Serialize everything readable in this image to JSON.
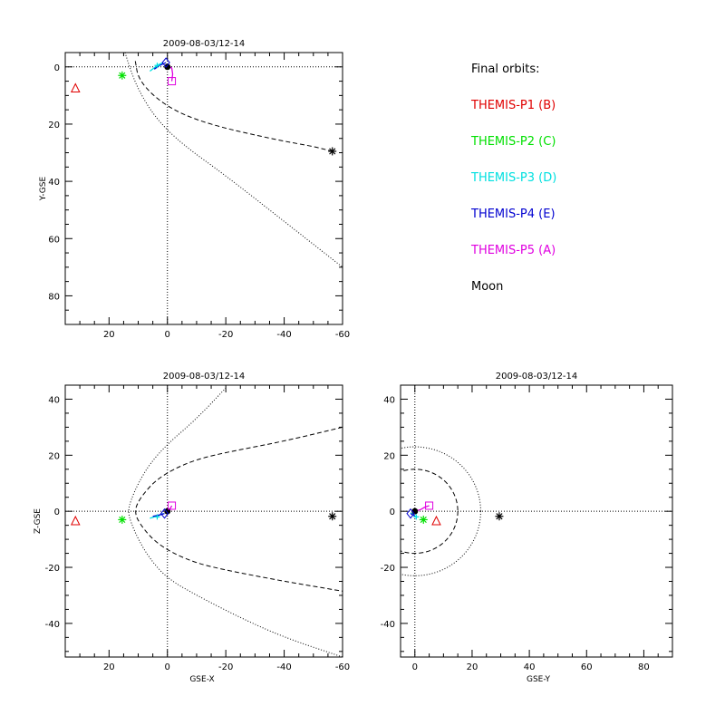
{
  "legend": {
    "title": "Final orbits:",
    "items": [
      {
        "label": "THEMIS-P1 (B)",
        "color": "#e00000"
      },
      {
        "label": "THEMIS-P2 (C)",
        "color": "#00e000"
      },
      {
        "label": "THEMIS-P3 (D)",
        "color": "#00e0e0"
      },
      {
        "label": "THEMIS-P4 (E)",
        "color": "#0000d0"
      },
      {
        "label": "THEMIS-P5 (A)",
        "color": "#e000e0"
      },
      {
        "label": "Moon",
        "color": "#000000"
      }
    ]
  },
  "chart_data": [
    {
      "type": "scatter",
      "title": "2009-08-03/12-14",
      "xlabel": "",
      "ylabel": "Y-GSE",
      "xlim": [
        35,
        -60
      ],
      "ylim": [
        -5,
        90
      ],
      "xticks": [
        20,
        0,
        -20,
        -40,
        -60
      ],
      "yticks": [
        0,
        20,
        40,
        60,
        80
      ],
      "positions": [
        {
          "name": "THEMIS-P1 (B)",
          "x": 31.5,
          "y": 7.5,
          "marker": "triangle",
          "color": "#e00000"
        },
        {
          "name": "THEMIS-P2 (C)",
          "x": 15.5,
          "y": 3,
          "marker": "asterisk",
          "color": "#00e000"
        },
        {
          "name": "THEMIS-P3 (D)",
          "x": 3.5,
          "y": -0.5,
          "marker": "plus",
          "color": "#00e0e0"
        },
        {
          "name": "THEMIS-P4 (E)",
          "x": 0.5,
          "y": -1.5,
          "marker": "diamond",
          "color": "#0000d0"
        },
        {
          "name": "THEMIS-P5 (A)",
          "x": -1.5,
          "y": 5,
          "marker": "square",
          "color": "#e000e0"
        },
        {
          "name": "Moon",
          "x": -56.5,
          "y": 29.5,
          "marker": "asterisk",
          "color": "#000000"
        }
      ],
      "orbit_tracks": [
        {
          "name": "THEMIS-P3 (D)",
          "color": "#00e0e0",
          "x": [
            6,
            4.5,
            3,
            1.5
          ],
          "y": [
            1.5,
            0.3,
            -0.8,
            -1.5
          ]
        },
        {
          "name": "THEMIS-P4 (E)",
          "color": "#0000d0",
          "x": [
            4.5,
            3,
            1.8,
            0.5
          ],
          "y": [
            0.8,
            -0.3,
            -0.9,
            -1.5
          ]
        },
        {
          "name": "THEMIS-P5 (A)",
          "color": "#e000e0",
          "x": [
            -1.5,
            -1.8,
            -1.5,
            -0.5,
            0.5
          ],
          "y": [
            5,
            2.5,
            0.5,
            -0.5,
            -0.2
          ]
        }
      ],
      "boundaries": [
        {
          "name": "bow-shock",
          "style": "dotted",
          "x": [
            14.5,
            13,
            10,
            4,
            -5,
            -20,
            -40,
            -60
          ],
          "y": [
            -5,
            0,
            8,
            18,
            27,
            38,
            54,
            70
          ]
        },
        {
          "name": "magnetopause",
          "style": "dashed",
          "x": [
            11,
            10,
            5,
            -2,
            -10,
            -20,
            -30,
            -40,
            -50,
            -56.5
          ],
          "y": [
            -2,
            4,
            10,
            15,
            18.5,
            21.5,
            23.8,
            26,
            27.8,
            29.5
          ]
        }
      ],
      "earth": {
        "x": 0,
        "y": 0
      }
    },
    {
      "type": "scatter",
      "title": "2009-08-03/12-14",
      "xlabel": "GSE-X",
      "ylabel": "Z-GSE",
      "xlim": [
        35,
        -60
      ],
      "ylim": [
        -52,
        45
      ],
      "xticks": [
        20,
        0,
        -20,
        -40,
        -60
      ],
      "yticks": [
        40,
        20,
        0,
        -20,
        -40
      ],
      "positions": [
        {
          "name": "THEMIS-P1 (B)",
          "x": 31.5,
          "y": -3.5,
          "marker": "triangle",
          "color": "#e00000"
        },
        {
          "name": "THEMIS-P2 (C)",
          "x": 15.5,
          "y": -3,
          "marker": "asterisk",
          "color": "#00e000"
        },
        {
          "name": "THEMIS-P3 (D)",
          "x": 3.5,
          "y": -2,
          "marker": "plus",
          "color": "#00e0e0"
        },
        {
          "name": "THEMIS-P4 (E)",
          "x": 1,
          "y": -0.8,
          "marker": "diamond",
          "color": "#0000d0"
        },
        {
          "name": "THEMIS-P5 (A)",
          "x": -1.5,
          "y": 2,
          "marker": "square",
          "color": "#e000e0"
        },
        {
          "name": "Moon",
          "x": -56.5,
          "y": -1.8,
          "marker": "asterisk",
          "color": "#000000"
        }
      ],
      "orbit_tracks": [
        {
          "name": "THEMIS-P3 (D)",
          "color": "#00e0e0",
          "x": [
            6,
            4.5,
            3,
            1.5
          ],
          "y": [
            -2.5,
            -2,
            -1.5,
            -0.8
          ]
        },
        {
          "name": "THEMIS-P4 (E)",
          "color": "#0000d0",
          "x": [
            5,
            3.5,
            2,
            1
          ],
          "y": [
            -1.8,
            -1.5,
            -1.1,
            -0.8
          ]
        },
        {
          "name": "THEMIS-P5 (A)",
          "color": "#e000e0",
          "x": [
            -1.5,
            -1,
            0,
            0.5
          ],
          "y": [
            2,
            1,
            0.3,
            -0.2
          ]
        }
      ],
      "boundaries": [
        {
          "name": "bow-shock",
          "style": "dotted",
          "x": [
            -20,
            -10,
            0,
            6,
            10,
            12.5,
            13.5,
            12.5,
            10,
            6,
            0,
            -10,
            -25,
            -40,
            -60
          ],
          "y": [
            44,
            33,
            24,
            17,
            10,
            4,
            0,
            -4,
            -10,
            -17,
            -24,
            -30,
            -38,
            -45,
            -52
          ]
        },
        {
          "name": "magnetopause",
          "style": "dashed",
          "x": [
            -60,
            -40,
            -20,
            -10,
            -2,
            4,
            8,
            10.5,
            11,
            10.5,
            8,
            4,
            -2,
            -10,
            -20,
            -40,
            -60
          ],
          "y": [
            30,
            25,
            21,
            18.5,
            15,
            11,
            6.5,
            2.5,
            0,
            -2.5,
            -6.5,
            -11,
            -15,
            -18.5,
            -21,
            -25,
            -28.5
          ]
        }
      ],
      "earth": {
        "x": 0,
        "y": 0
      }
    },
    {
      "type": "scatter",
      "title": "2009-08-03/12-14",
      "xlabel": "GSE-Y",
      "ylabel": "",
      "xlim": [
        -5,
        90
      ],
      "ylim": [
        -52,
        45
      ],
      "xticks": [
        0,
        20,
        40,
        60,
        80
      ],
      "yticks": [
        40,
        20,
        0,
        -20,
        -40
      ],
      "positions": [
        {
          "name": "THEMIS-P1 (B)",
          "x": 7.5,
          "y": -3.5,
          "marker": "triangle",
          "color": "#e00000"
        },
        {
          "name": "THEMIS-P2 (C)",
          "x": 3,
          "y": -3,
          "marker": "asterisk",
          "color": "#00e000"
        },
        {
          "name": "THEMIS-P3 (D)",
          "x": 0.5,
          "y": -2,
          "marker": "plus",
          "color": "#00e0e0"
        },
        {
          "name": "THEMIS-P4 (E)",
          "x": -1.5,
          "y": -0.8,
          "marker": "diamond",
          "color": "#0000d0"
        },
        {
          "name": "THEMIS-P5 (A)",
          "x": 5,
          "y": 2,
          "marker": "square",
          "color": "#e000e0"
        },
        {
          "name": "Moon",
          "x": 29.5,
          "y": -1.8,
          "marker": "asterisk",
          "color": "#000000"
        }
      ],
      "orbit_tracks": [
        {
          "name": "THEMIS-P3 (D)",
          "color": "#00e0e0",
          "x": [
            -1.5,
            -0.5,
            0.5
          ],
          "y": [
            -0.5,
            -1.3,
            -2
          ]
        },
        {
          "name": "THEMIS-P4 (E)",
          "color": "#0000d0",
          "x": [
            -1.5,
            -0.8,
            0
          ],
          "y": [
            -0.8,
            -1.3,
            -1.6
          ]
        },
        {
          "name": "THEMIS-P5 (A)",
          "color": "#e000e0",
          "x": [
            0,
            2,
            3.5,
            5
          ],
          "y": [
            0,
            0.6,
            1.5,
            2
          ]
        }
      ],
      "boundaries": [
        {
          "name": "bow-shock",
          "style": "dotted",
          "circle": {
            "cx": 0,
            "cy": 0,
            "r": 23
          }
        },
        {
          "name": "magnetopause",
          "style": "dashed",
          "circle": {
            "cx": 0,
            "cy": 0,
            "r": 15
          }
        }
      ],
      "earth": {
        "x": 0,
        "y": 0
      }
    }
  ]
}
